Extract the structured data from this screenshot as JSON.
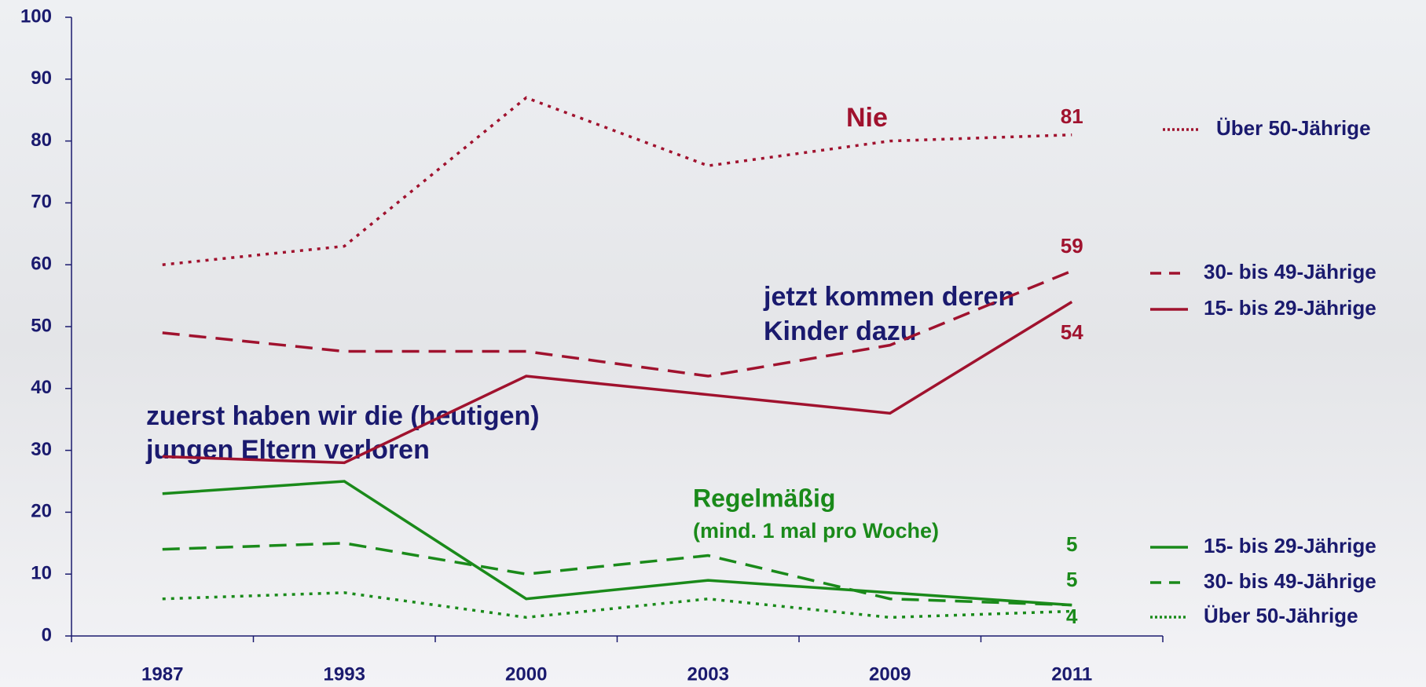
{
  "chart_data": {
    "type": "line",
    "categories": [
      "1987",
      "1993",
      "2000",
      "2003",
      "2009",
      "2011"
    ],
    "ylim": [
      0,
      100
    ],
    "yticks": [
      0,
      10,
      20,
      30,
      40,
      50,
      60,
      70,
      80,
      90,
      100
    ],
    "series": [
      {
        "name": "Über 50-Jährige",
        "group": "Nie",
        "color": "#a0122e",
        "dash": "dotted",
        "values": [
          60,
          63,
          87,
          76,
          80,
          81
        ]
      },
      {
        "name": "30- bis 49-Jährige",
        "group": "Nie",
        "color": "#a0122e",
        "dash": "dashed",
        "values": [
          49,
          46,
          46,
          42,
          47,
          59
        ]
      },
      {
        "name": "15- bis 29-Jährige",
        "group": "Nie",
        "color": "#a0122e",
        "dash": "solid",
        "values": [
          29,
          28,
          42,
          39,
          36,
          54
        ]
      },
      {
        "name": "15- bis 29-Jährige",
        "group": "Regelmäßig",
        "color": "#1a8a1a",
        "dash": "solid",
        "values": [
          23,
          25,
          6,
          9,
          7,
          5
        ]
      },
      {
        "name": "30- bis 49-Jährige",
        "group": "Regelmäßig",
        "color": "#1a8a1a",
        "dash": "dashed",
        "values": [
          14,
          15,
          10,
          13,
          6,
          5
        ]
      },
      {
        "name": "Über 50-Jährige",
        "group": "Regelmäßig",
        "color": "#1a8a1a",
        "dash": "dotted",
        "values": [
          6,
          7,
          3,
          6,
          3,
          4
        ]
      }
    ],
    "annotations": {
      "nie": "Nie",
      "regelmaessig": "Regelmäßig",
      "regelmaessig_note": "(mind. 1 mal pro Woche)",
      "kinder": [
        "jetzt kommen deren",
        "Kinder dazu"
      ],
      "eltern": [
        "zuerst haben wir die (heutigen)",
        "jungen Eltern verloren"
      ]
    }
  }
}
